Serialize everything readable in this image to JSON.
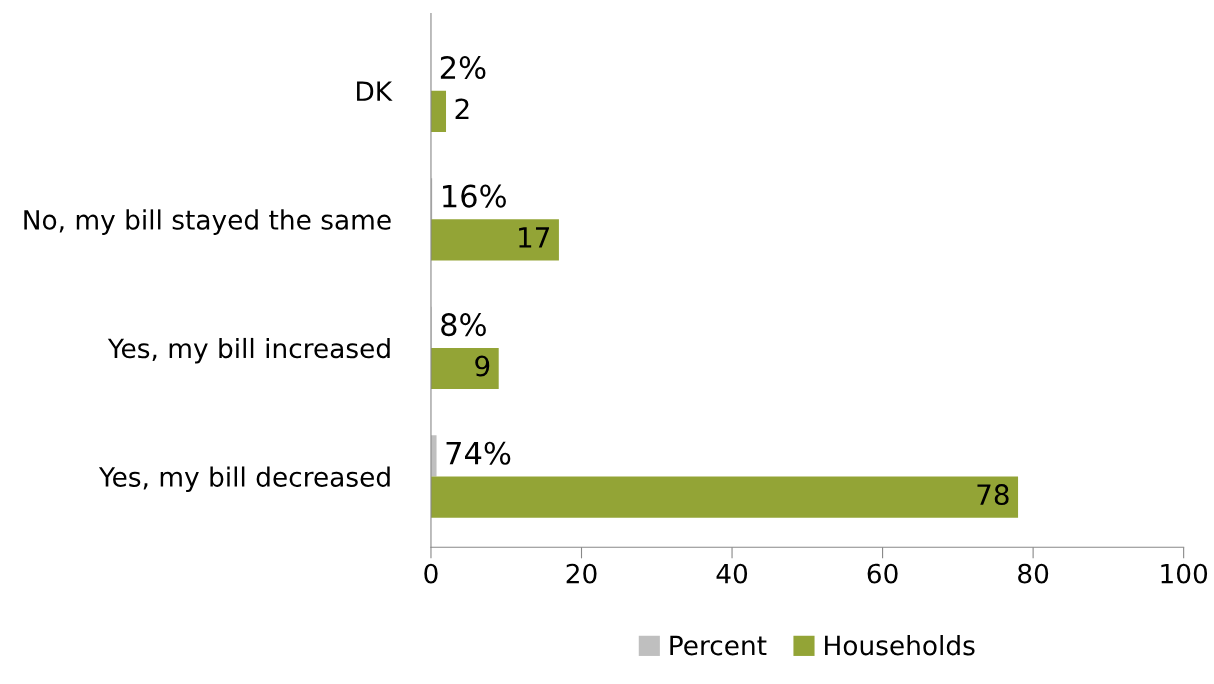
{
  "chart_data": {
    "type": "bar",
    "orientation": "horizontal",
    "categories": [
      "DK",
      "No, my bill stayed the same",
      "Yes, my bill increased",
      "Yes, my bill decreased"
    ],
    "series": [
      {
        "name": "Percent",
        "color": "#bfbfbf",
        "values": [
          0.02,
          0.16,
          0.08,
          0.74
        ],
        "value_labels": [
          "2%",
          "16%",
          "8%",
          "74%"
        ]
      },
      {
        "name": "Households",
        "color": "#93a436",
        "values": [
          2,
          17,
          9,
          78
        ],
        "value_labels": [
          "2",
          "17",
          "9",
          "78"
        ]
      }
    ],
    "xlim": [
      0,
      100
    ],
    "xticks": [
      0,
      20,
      40,
      60,
      80,
      100
    ],
    "grid": false,
    "legend": "bottom"
  }
}
